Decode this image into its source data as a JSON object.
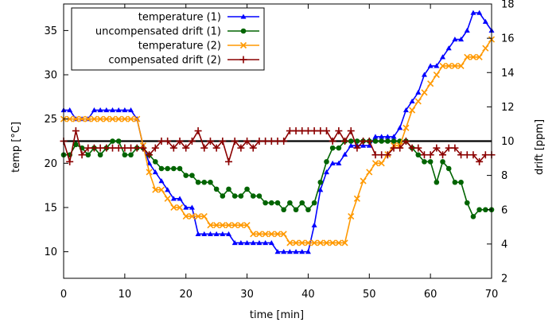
{
  "chart_data": {
    "type": "line",
    "xlabel": "time [min]",
    "ylabel": "temp [°C]",
    "y2label": "drift [ppm]",
    "xlim": [
      0,
      70
    ],
    "ylim": [
      7,
      38
    ],
    "y2lim": [
      2,
      18
    ],
    "xticks": [
      0,
      10,
      20,
      30,
      40,
      50,
      60,
      70
    ],
    "yticks": [
      10,
      15,
      20,
      25,
      30,
      35
    ],
    "y2ticks": [
      2,
      4,
      6,
      8,
      10,
      12,
      14,
      16,
      18
    ],
    "grid": false,
    "legend_position": "top-left",
    "reference_line": {
      "axis": "y2",
      "value": 10,
      "color": "#000000"
    },
    "series": [
      {
        "name": "temperature (1)",
        "axis": "y",
        "color": "#0000ff",
        "marker": "triangle",
        "x": [
          0,
          1,
          2,
          3,
          4,
          5,
          6,
          7,
          8,
          9,
          10,
          11,
          12,
          13,
          14,
          15,
          16,
          17,
          18,
          19,
          20,
          21,
          22,
          23,
          24,
          25,
          26,
          27,
          28,
          29,
          30,
          31,
          32,
          33,
          34,
          35,
          36,
          37,
          38,
          39,
          40,
          41,
          42,
          43,
          44,
          45,
          46,
          47,
          48,
          49,
          50,
          51,
          52,
          53,
          54,
          55,
          56,
          57,
          58,
          59,
          60,
          61,
          62,
          63,
          64,
          65,
          66,
          67,
          68,
          69,
          70
        ],
        "y": [
          26,
          26,
          25,
          25,
          25,
          26,
          26,
          26,
          26,
          26,
          26,
          26,
          25,
          22,
          20,
          19,
          18,
          17,
          16,
          16,
          15,
          15,
          12,
          12,
          12,
          12,
          12,
          12,
          11,
          11,
          11,
          11,
          11,
          11,
          11,
          10,
          10,
          10,
          10,
          10,
          10,
          13,
          17,
          19,
          20,
          20,
          21,
          22,
          22,
          22,
          22,
          23,
          23,
          23,
          23,
          24,
          26,
          27,
          28,
          30,
          31,
          31,
          32,
          33,
          34,
          34,
          35,
          37,
          37,
          36,
          35
        ]
      },
      {
        "name": "uncompensated drift (1)",
        "axis": "y2",
        "color": "#006400",
        "marker": "circle",
        "x": [
          0,
          1,
          2,
          3,
          4,
          5,
          6,
          7,
          8,
          9,
          10,
          11,
          12,
          13,
          14,
          15,
          16,
          17,
          18,
          19,
          20,
          21,
          22,
          23,
          24,
          25,
          26,
          27,
          28,
          29,
          30,
          31,
          32,
          33,
          34,
          35,
          36,
          37,
          38,
          39,
          40,
          41,
          42,
          43,
          44,
          45,
          46,
          47,
          48,
          49,
          50,
          51,
          52,
          53,
          54,
          55,
          56,
          57,
          58,
          59,
          60,
          61,
          62,
          63,
          64,
          65,
          66,
          67,
          68,
          69,
          70
        ],
        "y": [
          9.2,
          9.2,
          9.8,
          9.6,
          9.2,
          9.6,
          9.2,
          9.6,
          10.0,
          10.0,
          9.2,
          9.2,
          9.6,
          9.6,
          9.2,
          8.8,
          8.4,
          8.4,
          8.4,
          8.4,
          8.0,
          8.0,
          7.6,
          7.6,
          7.6,
          7.2,
          6.8,
          7.2,
          6.8,
          6.8,
          7.2,
          6.8,
          6.8,
          6.4,
          6.4,
          6.4,
          6.0,
          6.4,
          6.0,
          6.4,
          6.0,
          6.4,
          7.6,
          8.8,
          9.6,
          9.6,
          10.0,
          10.0,
          10.0,
          10.0,
          10.0,
          10.0,
          10.0,
          10.0,
          10.0,
          10.0,
          10.0,
          9.6,
          9.2,
          8.8,
          8.8,
          7.6,
          8.8,
          8.4,
          7.6,
          7.6,
          6.4,
          5.6,
          6.0,
          6.0,
          6.0
        ]
      },
      {
        "name": "temperature (2)",
        "axis": "y",
        "color": "#ff9900",
        "marker": "x",
        "x": [
          0,
          1,
          2,
          3,
          4,
          5,
          6,
          7,
          8,
          9,
          10,
          11,
          12,
          13,
          14,
          15,
          16,
          17,
          18,
          19,
          20,
          21,
          22,
          23,
          24,
          25,
          26,
          27,
          28,
          29,
          30,
          31,
          32,
          33,
          34,
          35,
          36,
          37,
          38,
          39,
          40,
          41,
          42,
          43,
          44,
          45,
          46,
          47,
          48,
          49,
          50,
          51,
          52,
          53,
          54,
          55,
          56,
          57,
          58,
          59,
          60,
          61,
          62,
          63,
          64,
          65,
          66,
          67,
          68,
          69,
          70
        ],
        "y": [
          25,
          25,
          25,
          25,
          25,
          25,
          25,
          25,
          25,
          25,
          25,
          25,
          25,
          22,
          19,
          17,
          17,
          16,
          15,
          15,
          14,
          14,
          14,
          14,
          13,
          13,
          13,
          13,
          13,
          13,
          13,
          12,
          12,
          12,
          12,
          12,
          12,
          11,
          11,
          11,
          11,
          11,
          11,
          11,
          11,
          11,
          11,
          14,
          16,
          18,
          19,
          20,
          20,
          21,
          22,
          22,
          24,
          26,
          27,
          28,
          29,
          30,
          31,
          31,
          31,
          31,
          32,
          32,
          32,
          33,
          34
        ]
      },
      {
        "name": "compensated drift (2)",
        "axis": "y2",
        "color": "#8b0000",
        "marker": "plus",
        "x": [
          0,
          1,
          2,
          3,
          4,
          5,
          6,
          7,
          8,
          9,
          10,
          11,
          12,
          13,
          14,
          15,
          16,
          17,
          18,
          19,
          20,
          21,
          22,
          23,
          24,
          25,
          26,
          27,
          28,
          29,
          30,
          31,
          32,
          33,
          34,
          35,
          36,
          37,
          38,
          39,
          40,
          41,
          42,
          43,
          44,
          45,
          46,
          47,
          48,
          49,
          50,
          51,
          52,
          53,
          54,
          55,
          56,
          57,
          58,
          59,
          60,
          61,
          62,
          63,
          64,
          65,
          66,
          67,
          68,
          69,
          70
        ],
        "y": [
          10.0,
          8.8,
          10.6,
          9.2,
          9.6,
          9.6,
          9.6,
          9.6,
          9.6,
          9.6,
          9.6,
          9.6,
          9.6,
          9.6,
          9.2,
          9.6,
          10.0,
          10.0,
          9.6,
          10.0,
          9.6,
          10.0,
          10.6,
          9.6,
          10.0,
          9.6,
          10.0,
          8.8,
          10.0,
          9.6,
          10.0,
          9.6,
          10.0,
          10.0,
          10.0,
          10.0,
          10.0,
          10.6,
          10.6,
          10.6,
          10.6,
          10.6,
          10.6,
          10.6,
          10.0,
          10.6,
          10.0,
          10.6,
          9.6,
          10.0,
          10.0,
          9.2,
          9.2,
          9.2,
          9.6,
          9.6,
          10.0,
          9.6,
          9.6,
          9.2,
          9.2,
          9.6,
          9.2,
          9.6,
          9.6,
          9.2,
          9.2,
          9.2,
          8.8,
          9.2,
          9.2
        ]
      }
    ]
  }
}
